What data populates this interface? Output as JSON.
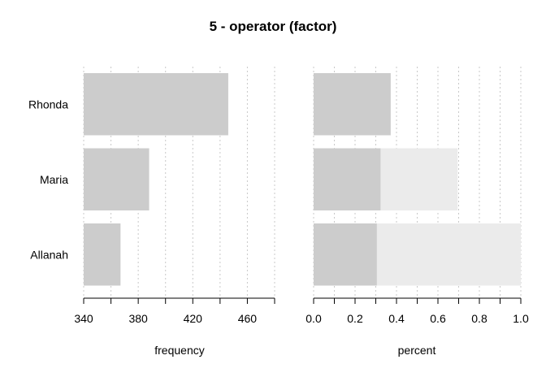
{
  "chart_data": {
    "title": "5 - operator (factor)",
    "categories": [
      "Rhonda",
      "Maria",
      "Allanah"
    ],
    "panels": [
      {
        "type": "bar",
        "orientation": "horizontal",
        "xlabel": "frequency",
        "xlim": [
          340,
          480
        ],
        "ticks": [
          340,
          380,
          420,
          460
        ],
        "grid": true,
        "values": [
          446,
          388,
          367
        ],
        "bar_color": "#cccccc"
      },
      {
        "type": "bar",
        "orientation": "horizontal",
        "stacked": true,
        "xlabel": "percent",
        "xlim": [
          0,
          1
        ],
        "ticks": [
          "0.0",
          "0.2",
          "0.4",
          "0.6",
          "0.8",
          "1.0"
        ],
        "grid": true,
        "values": [
          0.372,
          0.323,
          0.305
        ],
        "cumulative": [
          0.372,
          0.695,
          1.0
        ],
        "bar_color": "#cccccc",
        "cumulative_color": "#ebebeb"
      }
    ]
  }
}
